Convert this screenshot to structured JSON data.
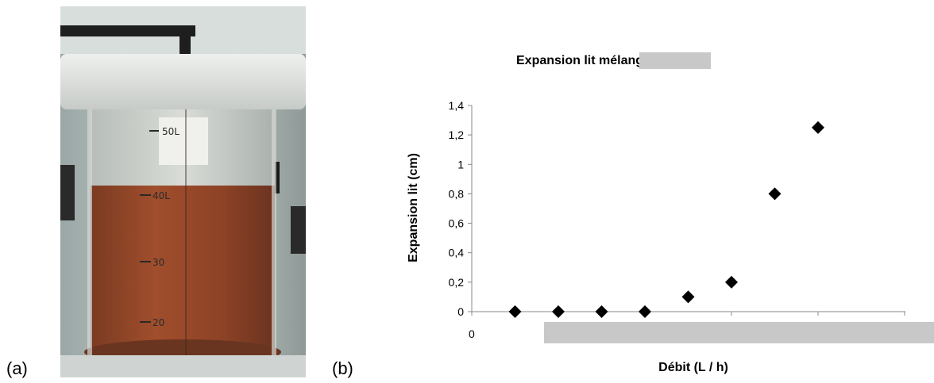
{
  "labels": {
    "a": "(a)",
    "b": "(b)"
  },
  "photo": {
    "markings": [
      "50L",
      "40L",
      "30",
      "20"
    ]
  },
  "chart_data": {
    "type": "scatter",
    "title": "Expansion lit mélangé + sable",
    "xlabel": "Débit (L / h)",
    "ylabel": "Expansion lit (cm)",
    "x_tick_labels": [
      "0"
    ],
    "ylim": [
      0,
      1.4
    ],
    "y_ticks": [
      "0",
      "0,2",
      "0,4",
      "0,6",
      "0,8",
      "1",
      "1,2",
      "1,4"
    ],
    "marker": "diamond",
    "marker_color": "#000000",
    "redaction_color": "#c8c8c8",
    "grid": false,
    "legend": "none",
    "points": [
      {
        "x": 1,
        "y": 0
      },
      {
        "x": 2,
        "y": 0
      },
      {
        "x": 3,
        "y": 0
      },
      {
        "x": 4,
        "y": 0
      },
      {
        "x": 5,
        "y": 0.1
      },
      {
        "x": 6,
        "y": 0.2
      },
      {
        "x": 7,
        "y": 0.8
      },
      {
        "x": 8,
        "y": 1.25
      }
    ]
  }
}
